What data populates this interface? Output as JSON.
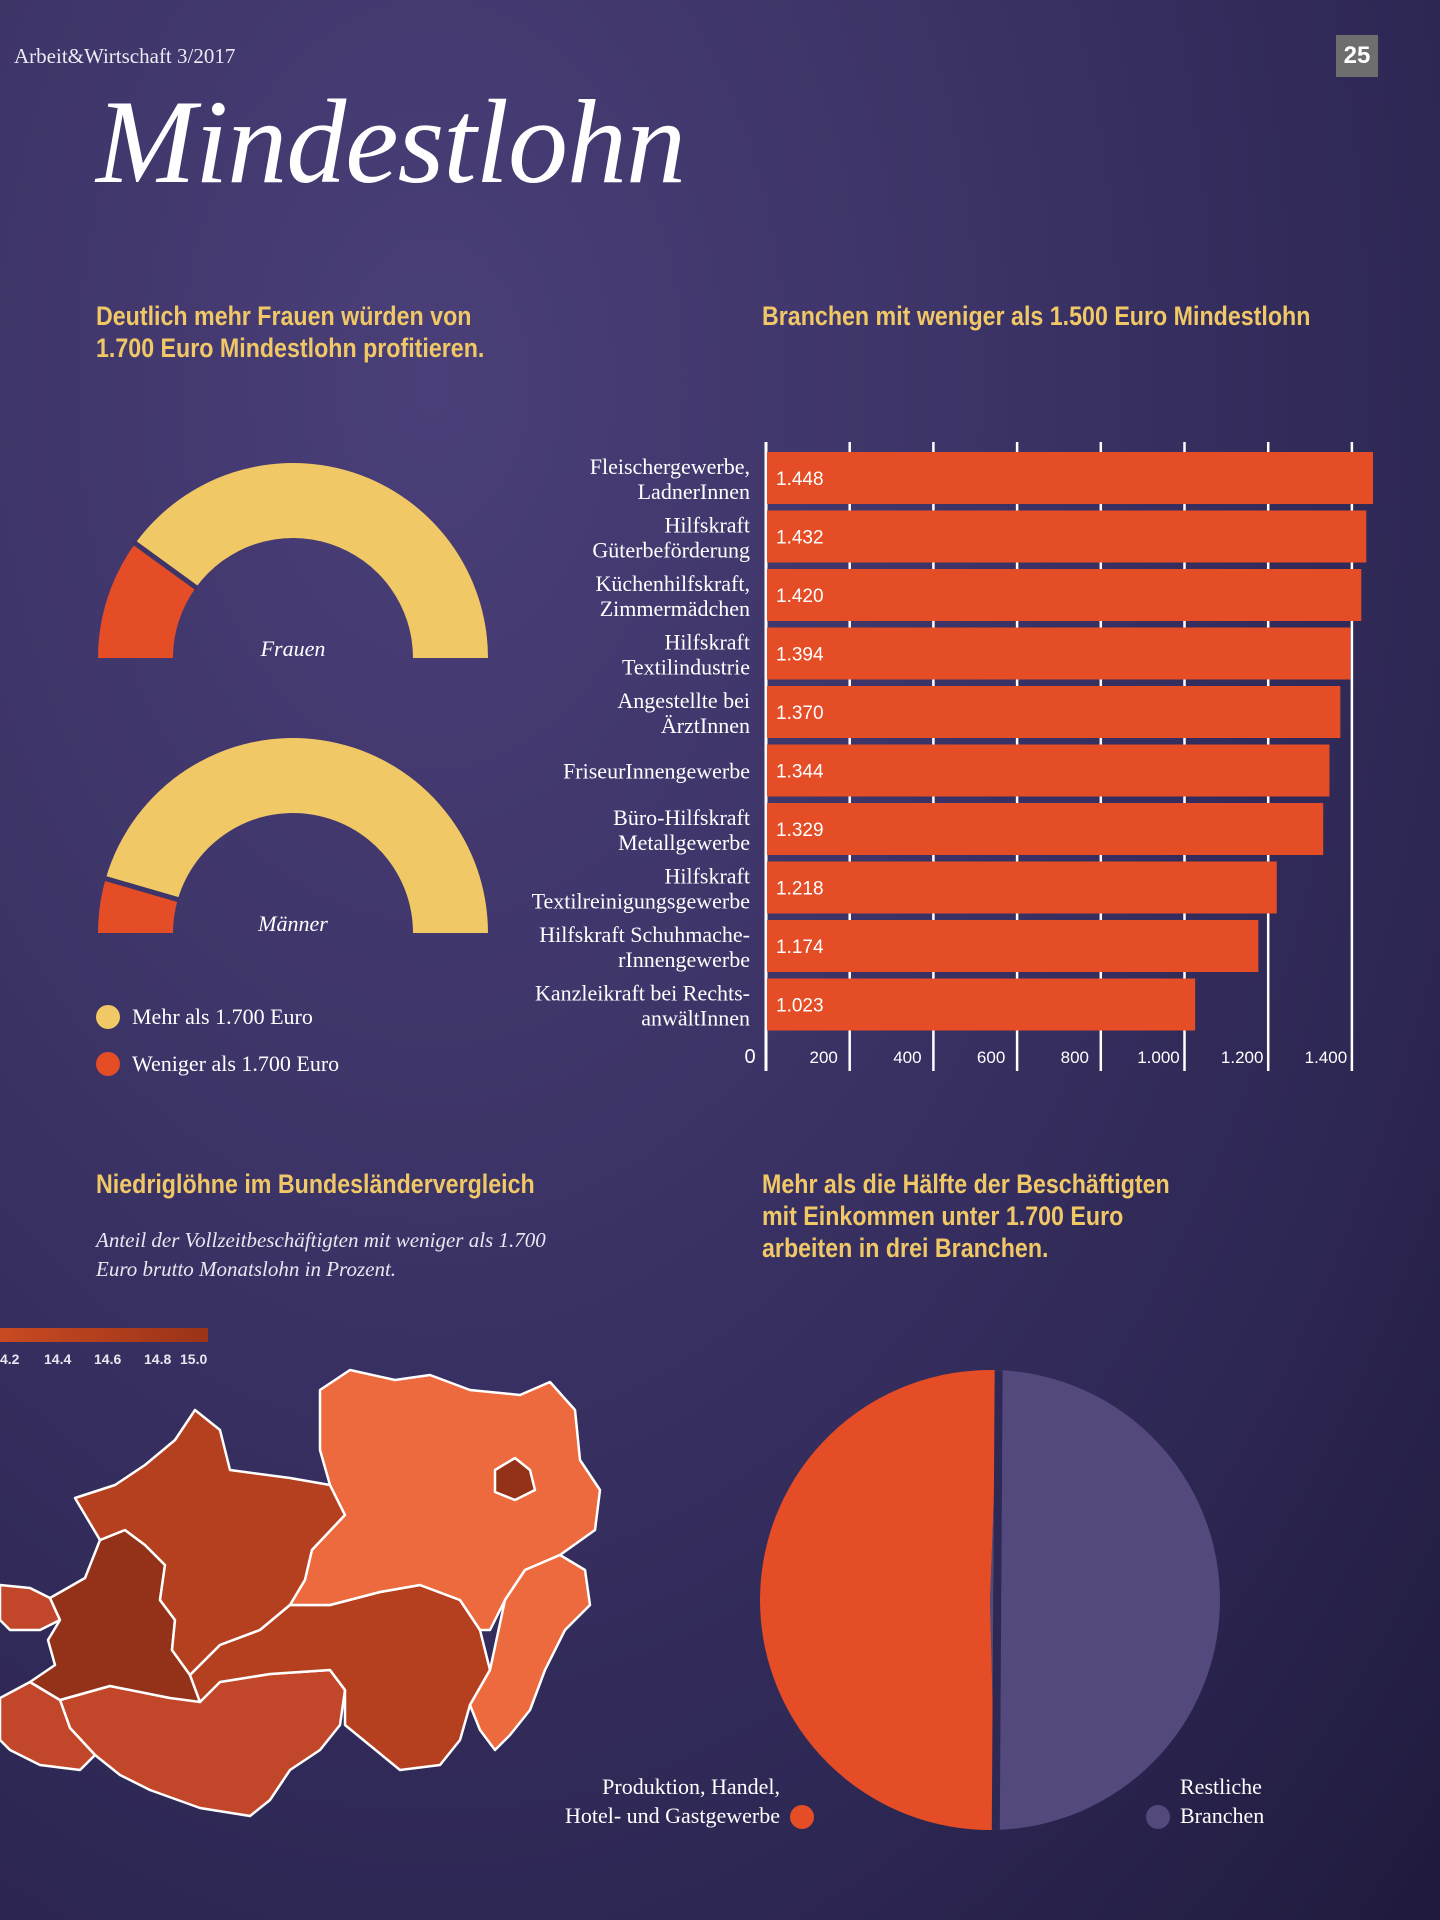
{
  "header": {
    "magazine": "Arbeit&Wirtschaft 3/2017",
    "page_number": "25",
    "title": "Mindestlohn"
  },
  "colors": {
    "yellow": "#f0c866",
    "red": "#e44d26",
    "purple": "#54497c",
    "background": "#3d3468"
  },
  "chart_data": [
    {
      "id": "gender-gauges",
      "type": "pie",
      "title": "Deutlich mehr Frauen würden von 1.700 Euro Mindestlohn profitieren.",
      "subtitle": "",
      "units": "",
      "legend": [
        {
          "label": "Mehr als 1.700 Euro",
          "color": "#f0c866"
        },
        {
          "label": "Weniger als 1.700 Euro",
          "color": "#e44d26"
        }
      ],
      "series": [
        {
          "name": "Frauen",
          "values": [
            {
              "category": "Weniger als 1.700 Euro",
              "share": 0.2
            },
            {
              "category": "Mehr als 1.700 Euro",
              "share": 0.8
            }
          ]
        },
        {
          "name": "Männer",
          "values": [
            {
              "category": "Weniger als 1.700 Euro",
              "share": 0.09
            },
            {
              "category": "Mehr als 1.700 Euro",
              "share": 0.91
            }
          ]
        }
      ]
    },
    {
      "id": "branches-bar",
      "type": "bar",
      "orientation": "horizontal",
      "title": "Branchen mit weniger als 1.500 Euro Mindestlohn",
      "xlabel": "",
      "ylabel": "",
      "xlim": [
        0,
        1400
      ],
      "ticks": [
        {
          "value": 0,
          "label": "0"
        },
        {
          "value": 200,
          "label": "200"
        },
        {
          "value": 400,
          "label": "400"
        },
        {
          "value": 600,
          "label": "600"
        },
        {
          "value": 800,
          "label": "800"
        },
        {
          "value": 1000,
          "label": "1.000"
        },
        {
          "value": 1200,
          "label": "1.200"
        },
        {
          "value": 1400,
          "label": "1.400"
        }
      ],
      "grid": true,
      "categories": [
        [
          "Fleischergewerbe,",
          "LadnerInnen"
        ],
        [
          "Hilfskraft",
          "Güterbeförderung"
        ],
        [
          "Küchenhilfskraft,",
          "Zimmermädchen"
        ],
        [
          "Hilfskraft",
          "Textilindustrie"
        ],
        [
          "Angestellte bei",
          "ÄrztInnen"
        ],
        [
          "FriseurInnengewerbe"
        ],
        [
          "Büro-Hilfskraft",
          "Metallgewerbe"
        ],
        [
          "Hilfskraft",
          "Textilreinigungsgewerbe"
        ],
        [
          "Hilfskraft Schuhmache-",
          "rInnengewerbe"
        ],
        [
          "Kanzleikraft bei Rechts-",
          "anwältInnen"
        ]
      ],
      "values": [
        1448,
        1432,
        1420,
        1394,
        1370,
        1344,
        1329,
        1218,
        1174,
        1023
      ],
      "value_labels": [
        "1.448",
        "1.432",
        "1.420",
        "1.394",
        "1.370",
        "1.344",
        "1.329",
        "1.218",
        "1.174",
        "1.023"
      ]
    },
    {
      "id": "bundeslaender-map",
      "type": "heatmap",
      "title": "Niedriglöhne im Bundesländervergleich",
      "subtitle": "Anteil der Vollzeitbeschäftigten mit weniger als 1.700 Euro brutto Monatslohn in Prozent.",
      "scale_labels": [
        "4.2",
        "14.4",
        "14.6",
        "14.8",
        "15.0"
      ]
    },
    {
      "id": "branches-pie",
      "type": "pie",
      "title": "Mehr als die Hälfte der Beschäftigten mit Einkommen unter 1.700 Euro arbeiten in drei Branchen.",
      "legend": [
        {
          "label_lines": [
            "Produktion, Handel,",
            "Hotel- und Gastgewerbe"
          ],
          "color": "#e44d26"
        },
        {
          "label_lines": [
            "Restliche",
            "Branchen"
          ],
          "color": "#54497c"
        }
      ],
      "values": [
        {
          "category": "Produktion, Handel, Hotel- und Gastgewerbe",
          "share": 0.51
        },
        {
          "category": "Restliche Branchen",
          "share": 0.49
        }
      ]
    }
  ]
}
